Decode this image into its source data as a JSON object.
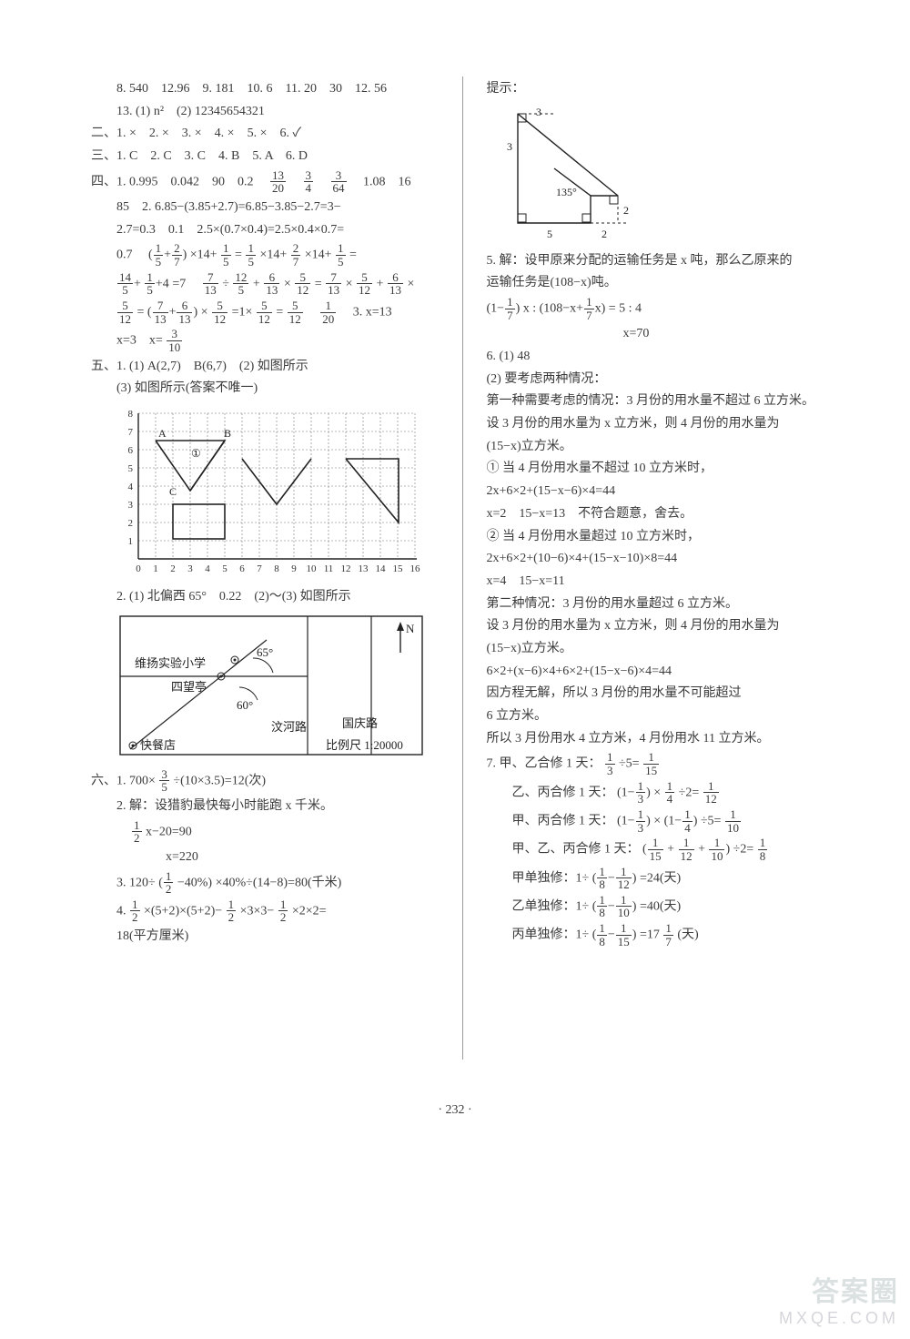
{
  "page_number": "· 232 ·",
  "watermark": {
    "top": "答案圈",
    "bot": "MXQE.COM"
  },
  "left": {
    "l1": "8. 540　12.96　9. 181　10. 6　11. 20　30　12. 56",
    "l2": "13. (1) n²　(2) 12345654321",
    "sec2": "二、1. ×　2. ×　3. ×　4. ×　5. ×　6. ✓",
    "sec3": "三、1. C　2. C　3. C　4. B　5. A　6. D",
    "sec4_head": "四、1. 0.995　0.042　90　0.2　",
    "sec4_tail": "　1.08　16",
    "sec4_b": "85　2. 6.85−(3.85+2.7)=6.85−3.85−2.7=3−",
    "sec4_c": "2.7=0.3　0.1　2.5×(0.7×0.4)=2.5×0.4×0.7=",
    "sec4_d_head": "0.7　",
    "sec4_e": "×14+",
    "sec4_f": "=",
    "sec4_g": "×14+",
    "sec4_h": "×14+",
    "sec4_i": "=",
    "sec4_line3_tail": "=7　",
    "sec4_j": "÷",
    "sec4_k": "+",
    "sec4_l": "×",
    "sec4_m": "=",
    "sec4_n": "×",
    "sec4_o": "+",
    "sec4_p": "×",
    "sec4_q": "=",
    "sec4_r": "×",
    "sec4_s": "=1×",
    "sec4_t": "=",
    "sec4_3tail": "　3. x=13",
    "sec4_last": "x=3　x=",
    "sec5_1": "五、1. (1) A(2,7)　B(6,7)　(2) 如图所示",
    "sec5_2": "(3) 如图所示(答案不唯一)",
    "sec5_b": "2. (1) 北偏西 65°　0.22　(2)～(3) 如图所示",
    "map_school": "维扬实验小学",
    "map_pavilion": "四望亭",
    "map_food": "快餐店",
    "map_road1": "汶河路",
    "map_road2": "国庆路",
    "map_scale": "比例尺 1:20000",
    "map_65": "65°",
    "map_60": "60°",
    "map_n": "N",
    "sec6_1_head": "六、1. 700×",
    "sec6_1_tail": "÷(10×3.5)=12(次)",
    "sec6_2a": "2. 解：设猎豹最快每小时能跑 x 千米。",
    "sec6_2b_head": "",
    "sec6_2b_tail": "x−20=90",
    "sec6_2c": "x=220",
    "sec6_3_head": "3. 120÷",
    "sec6_3_tail": "×40%÷(14−8)=80(千米)",
    "sec6_3_mid": "−40%",
    "sec6_4_head": "4. ",
    "sec6_4_a": "×(5+2)×(5+2)−",
    "sec6_4_b": "×3×3−",
    "sec6_4_c": "×2×2=",
    "sec6_4_end": "18(平方厘米)",
    "grid": {
      "x_labels": [
        "0",
        "1",
        "2",
        "3",
        "4",
        "5",
        "6",
        "7",
        "8",
        "9",
        "10",
        "11",
        "12",
        "13",
        "14",
        "15",
        "16"
      ],
      "y_labels": [
        "1",
        "2",
        "3",
        "4",
        "5",
        "6",
        "7",
        "8"
      ],
      "A": "A",
      "B": "B",
      "C": "C",
      "circ": "①"
    },
    "fracs": {
      "f13_20": {
        "n": "13",
        "d": "20"
      },
      "f3_4": {
        "n": "3",
        "d": "4"
      },
      "f3_64": {
        "n": "3",
        "d": "64"
      },
      "f1_5": {
        "n": "1",
        "d": "5"
      },
      "f2_7": {
        "n": "2",
        "d": "7"
      },
      "f14_5": {
        "n": "14",
        "d": "5"
      },
      "f7_13": {
        "n": "7",
        "d": "13"
      },
      "f12_5": {
        "n": "12",
        "d": "5"
      },
      "f6_13": {
        "n": "6",
        "d": "13"
      },
      "f5_12": {
        "n": "5",
        "d": "12"
      },
      "f1_20": {
        "n": "1",
        "d": "20"
      },
      "f3_10": {
        "n": "3",
        "d": "10"
      },
      "f3_5": {
        "n": "3",
        "d": "5"
      },
      "f1_2": {
        "n": "1",
        "d": "2"
      }
    }
  },
  "right": {
    "hint": "提示：",
    "tri": {
      "t3a": "3",
      "t3b": "3",
      "t5": "5",
      "t2a": "2",
      "t2b": "2",
      "ang": "135°"
    },
    "r5a": "5. 解：设甲原来分配的运输任务是 x 吨，那么乙原来的",
    "r5b": "运输任务是(108−x)吨。",
    "r5c_head": "",
    "r5c_mid": "x :",
    "r5c_mid2": "= 5 : 4",
    "r5d": "x=70",
    "r6a": "6. (1) 48",
    "r6b": "(2) 要考虑两种情况：",
    "r6c": "第一种需要考虑的情况：3 月份的用水量不超过 6 立方米。",
    "r6d": "设 3 月份的用水量为 x 立方米，则 4 月份的用水量为",
    "r6e": "(15−x)立方米。",
    "r6f": "① 当 4 月份用水量不超过 10 立方米时，",
    "r6g": "2x+6×2+(15−x−6)×4=44",
    "r6h": "x=2　15−x=13　不符合题意，舍去。",
    "r6i": "② 当 4 月份用水量超过 10 立方米时，",
    "r6j": "2x+6×2+(10−6)×4+(15−x−10)×8=44",
    "r6k": "x=4　15−x=11",
    "r6l": "第二种情况：3 月份的用水量超过 6 立方米。",
    "r6m": "设 3 月份的用水量为 x 立方米，则 4 月份的用水量为",
    "r6n": "(15−x)立方米。",
    "r6o": "6×2+(x−6)×4+6×2+(15−x−6)×4=44",
    "r6p": "因方程无解，所以 3 月份的用水量不可能超过",
    "r6q": "6 立方米。",
    "r6r": "所以 3 月份用水 4 立方米，4 月份用水 11 立方米。",
    "r7a_head": "7. 甲、乙合修 1 天：",
    "r7a_tail": "÷5=",
    "r7b_head": "乙、丙合修 1 天：",
    "r7b_mid": "×",
    "r7b_tail": "÷2=",
    "r7c_head": "甲、丙合修 1 天：",
    "r7c_mid": "×",
    "r7c_tail": "÷5=",
    "r7d_head": "甲、乙、丙合修 1 天：",
    "r7d_mid1": "+",
    "r7d_mid2": "+",
    "r7d_tail": "÷2=",
    "r7e_head": "甲单独修：1÷",
    "r7e_tail": "=24(天)",
    "r7f_head": "乙单独修：1÷",
    "r7f_tail": "=40(天)",
    "r7g_head": "丙单独修：1÷",
    "r7g_tail": "=17",
    "r7g_end": "(天)",
    "fracs": {
      "f1_7": {
        "n": "1",
        "d": "7"
      },
      "f1_3": {
        "n": "1",
        "d": "3"
      },
      "f1_15": {
        "n": "1",
        "d": "15"
      },
      "f1_4": {
        "n": "1",
        "d": "4"
      },
      "f1_12": {
        "n": "1",
        "d": "12"
      },
      "f1_10": {
        "n": "1",
        "d": "10"
      },
      "f1_8": {
        "n": "1",
        "d": "8"
      },
      "f1_7b": {
        "n": "1",
        "d": "7"
      }
    }
  }
}
